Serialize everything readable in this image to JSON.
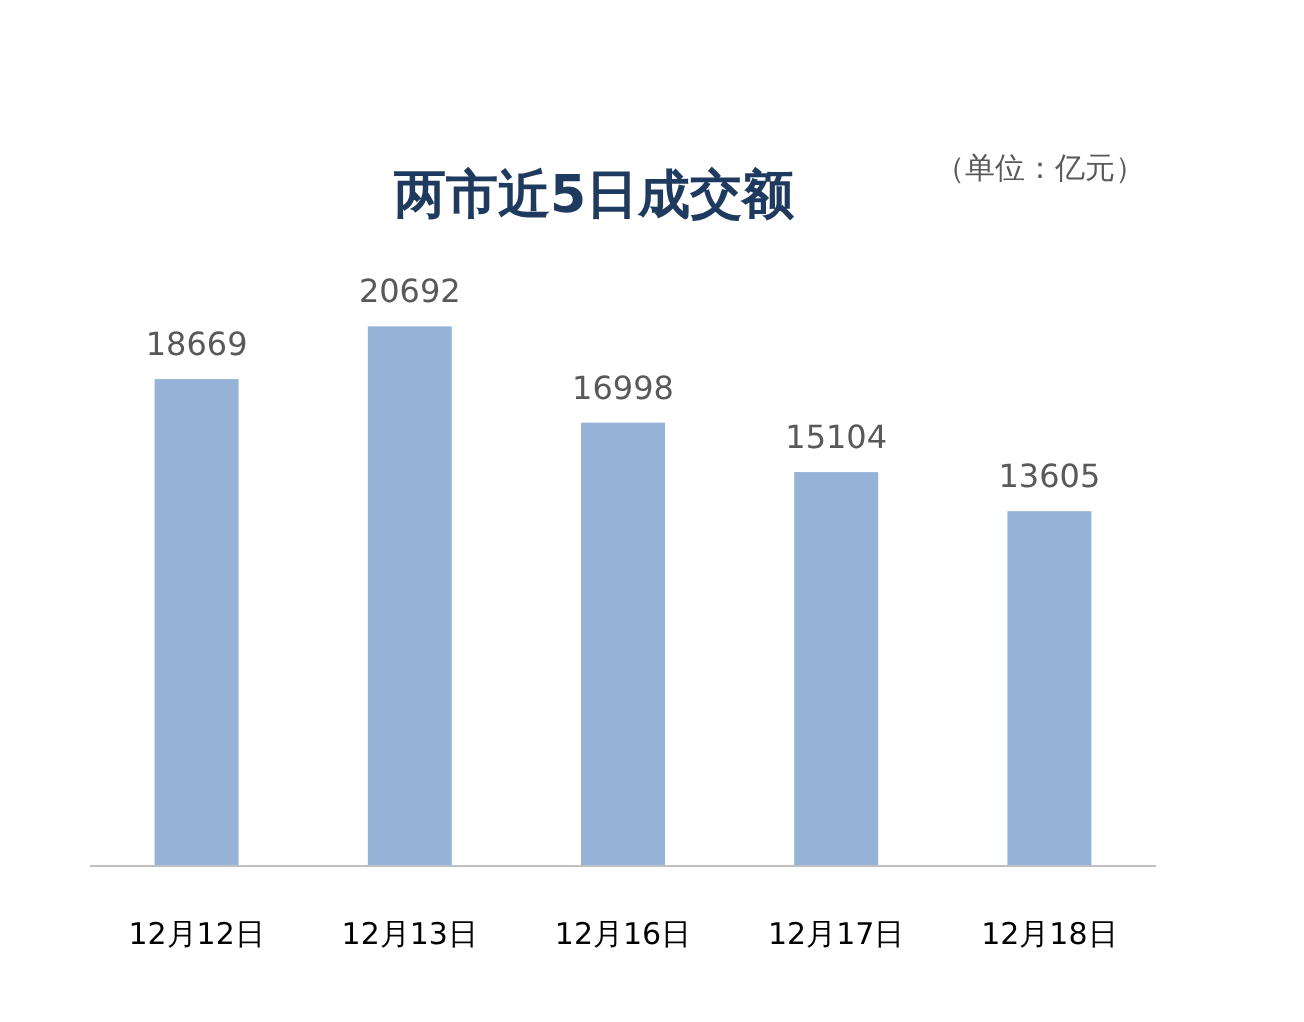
{
  "chart_data": {
    "type": "bar",
    "title": "两市近5日成交额",
    "subtitle": "（单位：亿元）",
    "categories": [
      "12月12日",
      "12月13日",
      "12月16日",
      "12月17日",
      "12月18日"
    ],
    "values": [
      18669,
      20692,
      16998,
      15104,
      13605
    ],
    "color": "#95b3d7",
    "data_labels": true,
    "grid": false,
    "legend": false
  }
}
